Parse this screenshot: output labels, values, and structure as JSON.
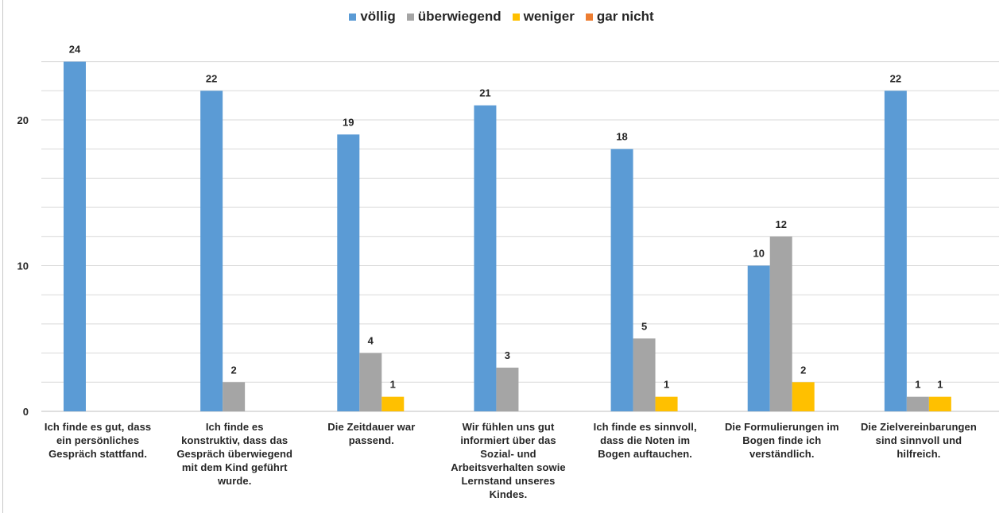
{
  "colors": {
    "voellig": "#5b9bd5",
    "ueberwiegend": "#a5a5a5",
    "weniger": "#ffc000",
    "gar_nicht": "#ed7d31",
    "grid": "#d9d9d9",
    "text": "#262626"
  },
  "legend": [
    {
      "label": "völlig",
      "color": "#5b9bd5"
    },
    {
      "label": "überwiegend",
      "color": "#a5a5a5"
    },
    {
      "label": "weniger",
      "color": "#ffc000"
    },
    {
      "label": "gar nicht",
      "color": "#ed7d31"
    }
  ],
  "chart_data": {
    "type": "bar",
    "categories": [
      "Ich finde es gut, dass ein persönliches Gespräch stattfand.",
      "Ich finde es konstruktiv, dass das Gespräch überwiegend mit dem Kind geführt wurde.",
      "Die Zeitdauer war passend.",
      "Wir fühlen uns gut informiert über das Sozial- und Arbeitsverhalten sowie Lernstand unseres Kindes.",
      "Ich finde es sinnvoll, dass die Noten im Bogen auftauchen.",
      "Die Formulierungen im Bogen finde ich verständlich.",
      "Die Zielvereinbarungen sind sinnvoll und hilfreich."
    ],
    "series": [
      {
        "name": "völlig",
        "color": "#5b9bd5",
        "values": [
          24,
          22,
          19,
          21,
          18,
          10,
          22
        ]
      },
      {
        "name": "überwiegend",
        "color": "#a5a5a5",
        "values": [
          0,
          2,
          4,
          3,
          5,
          12,
          1
        ]
      },
      {
        "name": "weniger",
        "color": "#ffc000",
        "values": [
          0,
          0,
          1,
          0,
          1,
          2,
          1
        ]
      },
      {
        "name": "gar nicht",
        "color": "#ed7d31",
        "values": [
          0,
          0,
          0,
          0,
          0,
          0,
          0
        ]
      }
    ],
    "y_ticks": [
      "0",
      "10",
      "20"
    ],
    "ylim": [
      0,
      25
    ],
    "grid": true,
    "legend_position": "top"
  }
}
